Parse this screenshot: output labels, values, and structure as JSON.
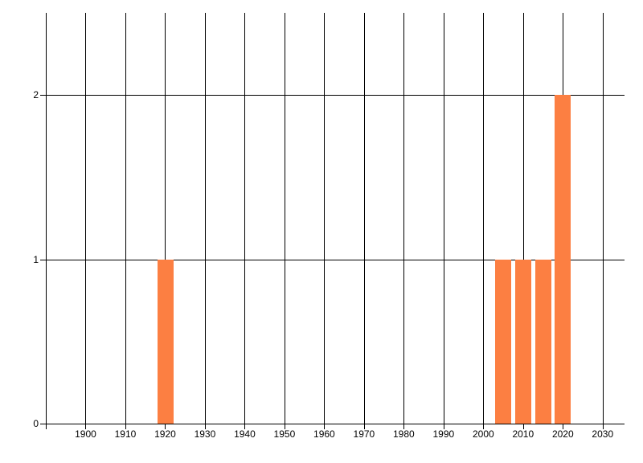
{
  "chart_data": {
    "type": "bar",
    "title": "",
    "xlabel": "",
    "ylabel": "",
    "x": [
      1920,
      2005,
      2010,
      2015,
      2020
    ],
    "values": [
      1,
      1,
      1,
      1,
      2
    ],
    "bar_width_years": 4,
    "xlim": [
      1890,
      2035.5
    ],
    "ylim": [
      0,
      2.5
    ],
    "x_gridlines": [
      1890,
      1900,
      1910,
      1920,
      1930,
      1940,
      1950,
      1960,
      1970,
      1980,
      1990,
      2000,
      2010,
      2020,
      2030
    ],
    "x_tick_labels": [
      "1900",
      "1910",
      "1920",
      "1930",
      "1940",
      "1950",
      "1960",
      "1970",
      "1980",
      "1990",
      "2000",
      "2010",
      "2020",
      "2030"
    ],
    "y_ticks": [
      "0",
      "1",
      "2"
    ],
    "grid": true,
    "legend": false,
    "bar_color": "#fc7f42",
    "grid_color": "#000000",
    "text_color": "#000000",
    "background_color": "#ffffff"
  }
}
